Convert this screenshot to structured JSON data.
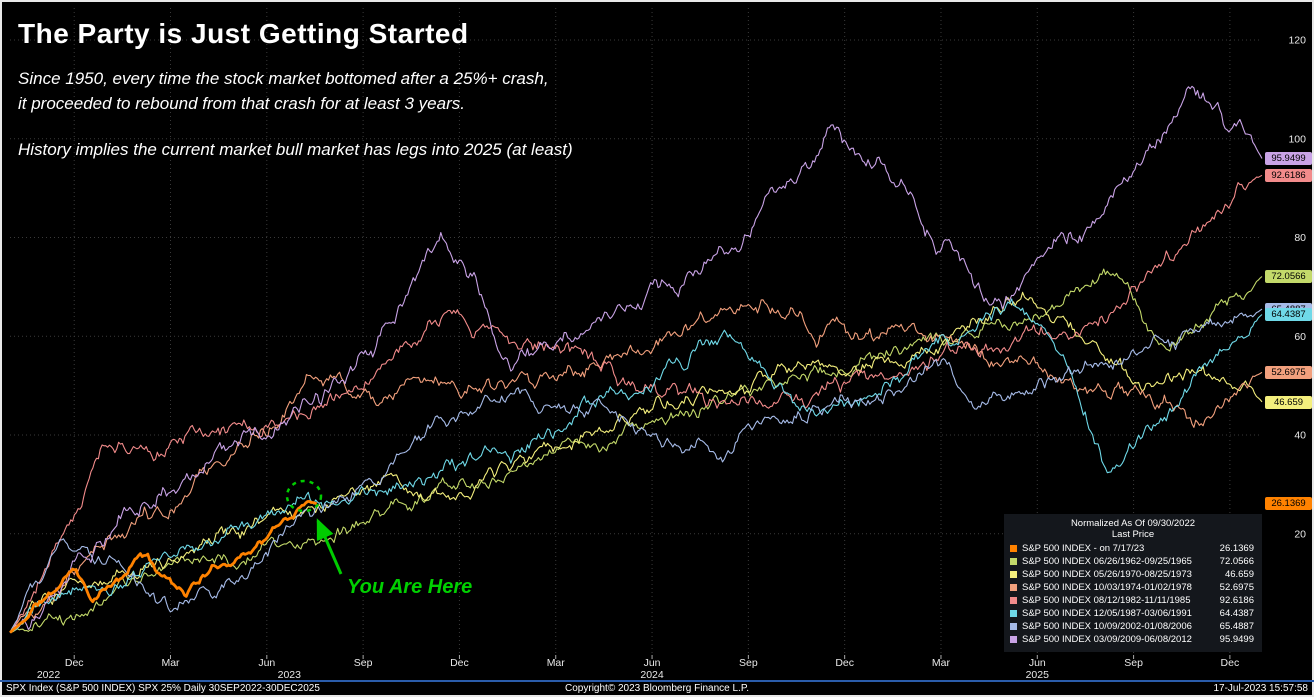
{
  "header": {
    "title": "The Party is Just Getting Started",
    "subtitle_lines": [
      "Since 1950, every time the stock market bottomed after a 25%+ crash,",
      "it proceeded to rebound from that crash for at least 3 years."
    ],
    "note": "History implies the current market bull market has legs into 2025 (at least)"
  },
  "annotation": {
    "label": "You Are Here",
    "color": "#00cc00"
  },
  "legend": {
    "header1": "Normalized As Of 09/30/2022",
    "header2": "Last Price",
    "rows": [
      {
        "label": "S&P 500 INDEX -  on 7/17/23",
        "value": "26.1369",
        "color": "#ff8200"
      },
      {
        "label": "S&P 500 INDEX 06/26/1962-09/25/1965",
        "value": "72.0566",
        "color": "#c3d96a"
      },
      {
        "label": "S&P 500 INDEX 05/26/1970-08/25/1973",
        "value": "46.659",
        "color": "#f4ef7d"
      },
      {
        "label": "S&P 500 INDEX 10/03/1974-01/02/1978",
        "value": "52.6975",
        "color": "#f2a07d"
      },
      {
        "label": "S&P 500 INDEX 08/12/1982-11/11/1985",
        "value": "92.6186",
        "color": "#f28b8b"
      },
      {
        "label": "S&P 500 INDEX 12/05/1987-03/06/1991",
        "value": "64.4387",
        "color": "#6fd9e8"
      },
      {
        "label": "S&P 500 INDEX 10/09/2002-01/08/2006",
        "value": "65.4887",
        "color": "#a6bbe8"
      },
      {
        "label": "S&P 500 INDEX 03/09/2009-06/08/2012",
        "value": "95.9499",
        "color": "#c9a3e6"
      }
    ]
  },
  "footer": {
    "left": "SPX Index (S&P 500 INDEX) SPX 25%  Daily 30SEP2022-30DEC2025",
    "center": "Copyright© 2023 Bloomberg Finance L.P.",
    "right": "17-Jul-2023 15:57:58"
  },
  "chart_data": {
    "type": "line",
    "title": "The Party is Just Getting Started",
    "normalized_as_of": "09/30/2022",
    "x_axis": {
      "start": "Oct 2022",
      "end": "Dec 2025",
      "total_months": 39,
      "month_ticks": [
        {
          "m": 2,
          "label": "Dec"
        },
        {
          "m": 5,
          "label": "Mar"
        },
        {
          "m": 8,
          "label": "Jun"
        },
        {
          "m": 11,
          "label": "Sep"
        },
        {
          "m": 14,
          "label": "Dec"
        },
        {
          "m": 17,
          "label": "Mar"
        },
        {
          "m": 20,
          "label": "Jun"
        },
        {
          "m": 23,
          "label": "Sep"
        },
        {
          "m": 26,
          "label": "Dec"
        },
        {
          "m": 29,
          "label": "Mar"
        },
        {
          "m": 32,
          "label": "Jun"
        },
        {
          "m": 35,
          "label": "Sep"
        },
        {
          "m": 38,
          "label": "Dec"
        }
      ],
      "year_labels": [
        {
          "m": 1.2,
          "label": "2022"
        },
        {
          "m": 8.7,
          "label": "2023"
        },
        {
          "m": 20,
          "label": "2024"
        },
        {
          "m": 32,
          "label": "2025"
        }
      ]
    },
    "y_axis": {
      "side": "right",
      "ticks": [
        120,
        100,
        80,
        60,
        40,
        20
      ],
      "range": [
        -5,
        126
      ]
    },
    "grid": {
      "horizontal": true,
      "vertical": true,
      "style": "dotted"
    },
    "badges": [
      {
        "value": "95.9499",
        "color": "#c9a3e6"
      },
      {
        "value": "92.6186",
        "color": "#f28b8b"
      },
      {
        "value": "72.0566",
        "color": "#c3d96a"
      },
      {
        "value": "65.4887",
        "color": "#a6bbe8"
      },
      {
        "value": "64.4387",
        "color": "#6fd9e8"
      },
      {
        "value": "52.6975",
        "color": "#f2a07d"
      },
      {
        "value": "46.659",
        "color": "#f4ef7d"
      },
      {
        "value": "26.1369",
        "color": "#ff8200"
      }
    ],
    "series": [
      {
        "id": "1962",
        "name": "S&P 500 INDEX 06/26/1962-09/25/1965",
        "color": "#c3d96a",
        "last_price": 72.0566,
        "width": 1.1,
        "seed": 21,
        "amp": 1.0,
        "kx": [
          0,
          0.06,
          0.12,
          0.2,
          0.3,
          0.4,
          0.5,
          0.6,
          0.7,
          0.8,
          0.885,
          0.925,
          0.96,
          1
        ],
        "ky": [
          0,
          6,
          11,
          17,
          25,
          33,
          41,
          48,
          55,
          63,
          72,
          56,
          63,
          72.1
        ]
      },
      {
        "id": "1970",
        "name": "S&P 500 INDEX 05/26/1970-08/25/1973",
        "color": "#f4ef7d",
        "last_price": 46.659,
        "width": 1.1,
        "seed": 31,
        "amp": 1.0,
        "kx": [
          0,
          0.05,
          0.1,
          0.15,
          0.2,
          0.25,
          0.3,
          0.35,
          0.4,
          0.45,
          0.5,
          0.55,
          0.6,
          0.65,
          0.7,
          0.75,
          0.81,
          0.85,
          0.88,
          0.91,
          0.95,
          1
        ],
        "ky": [
          0,
          8,
          14,
          19,
          24,
          27,
          31,
          28,
          33,
          38,
          43,
          46,
          50,
          53,
          56,
          60,
          68,
          60,
          54,
          48,
          53,
          46.7
        ]
      },
      {
        "id": "1974",
        "name": "S&P 500 INDEX 10/03/1974-01/02/1978",
        "color": "#f2a07d",
        "last_price": 52.6975,
        "width": 1.1,
        "seed": 41,
        "amp": 1.1,
        "kx": [
          0,
          0.06,
          0.12,
          0.18,
          0.24,
          0.3,
          0.35,
          0.4,
          0.45,
          0.5,
          0.55,
          0.6,
          0.65,
          0.7,
          0.75,
          0.8,
          0.85,
          0.9,
          0.944,
          1
        ],
        "ky": [
          0,
          14,
          24,
          37,
          53,
          45,
          50,
          48,
          54,
          57,
          61,
          66,
          63,
          60,
          57,
          54,
          51,
          47,
          45,
          52.7
        ]
      },
      {
        "id": "1982",
        "name": "S&P 500 INDEX 08/12/1982-11/11/1985",
        "color": "#f28b8b",
        "last_price": 92.6186,
        "width": 1.1,
        "seed": 51,
        "amp": 1.1,
        "kx": [
          0,
          0.02,
          0.045,
          0.074,
          0.12,
          0.16,
          0.2,
          0.25,
          0.3,
          0.357,
          0.4,
          0.45,
          0.5,
          0.55,
          0.6,
          0.65,
          0.7,
          0.75,
          0.8,
          0.85,
          0.9,
          0.95,
          1
        ],
        "ky": [
          0,
          9,
          22,
          40,
          36,
          42,
          45,
          47,
          54,
          66,
          61,
          57,
          52,
          48,
          44,
          50,
          52,
          55,
          58,
          62,
          70,
          80,
          92.6
        ]
      },
      {
        "id": "1987",
        "name": "S&P 500 INDEX 12/05/1987-03/06/1991",
        "color": "#6fd9e8",
        "last_price": 64.4387,
        "width": 1.1,
        "seed": 61,
        "amp": 1.0,
        "kx": [
          0,
          0.05,
          0.1,
          0.15,
          0.2,
          0.25,
          0.3,
          0.35,
          0.4,
          0.45,
          0.5,
          0.57,
          0.61,
          0.64,
          0.7,
          0.75,
          0.8,
          0.83,
          0.877,
          0.9,
          0.93,
          0.96,
          1
        ],
        "ky": [
          0,
          7,
          13,
          17,
          21,
          25,
          29,
          33,
          37,
          43,
          50,
          61,
          48,
          44,
          52,
          58,
          65,
          58,
          32,
          40,
          48,
          56,
          64.4
        ]
      },
      {
        "id": "2002",
        "name": "S&P 500 INDEX 10/09/2002-01/08/2006",
        "color": "#a6bbe8",
        "last_price": 65.4887,
        "width": 1.1,
        "seed": 71,
        "amp": 1.0,
        "kx": [
          0,
          0.042,
          0.08,
          0.13,
          0.18,
          0.25,
          0.3,
          0.35,
          0.4,
          0.45,
          0.5,
          0.565,
          0.62,
          0.68,
          0.74,
          0.77,
          0.82,
          0.87,
          0.92,
          0.96,
          1
        ],
        "ky": [
          0,
          20,
          14,
          3,
          10,
          25,
          33,
          42,
          49,
          45,
          42,
          37,
          44,
          50,
          57,
          46,
          52,
          55,
          58,
          61,
          65.5
        ]
      },
      {
        "id": "2009",
        "name": "S&P 500 INDEX 03/09/2009-06/08/2012",
        "color": "#c9a3e6",
        "last_price": 95.9499,
        "width": 1.1,
        "seed": 81,
        "amp": 1.2,
        "kx": [
          0,
          0.05,
          0.1,
          0.15,
          0.2,
          0.25,
          0.3,
          0.345,
          0.37,
          0.4,
          0.45,
          0.5,
          0.55,
          0.6,
          0.655,
          0.7,
          0.75,
          0.785,
          0.82,
          0.86,
          0.9,
          0.94,
          0.97,
          1
        ],
        "ky": [
          0,
          14,
          27,
          34,
          41,
          49,
          61,
          79,
          70,
          52,
          60,
          67,
          74,
          87,
          101,
          94,
          80,
          62,
          75,
          82,
          94,
          110,
          103,
          96
        ]
      },
      {
        "id": "current",
        "name": "S&P 500 INDEX -  on 7/17/23",
        "color": "#ff8200",
        "last_price": 26.1369,
        "width": 2.8,
        "seed": 11,
        "amp": 0.55,
        "kx": [
          0,
          0.01,
          0.02,
          0.035,
          0.052,
          0.064,
          0.075,
          0.09,
          0.105,
          0.118,
          0.14,
          0.155,
          0.17,
          0.185,
          0.2,
          0.215,
          0.228,
          0.238,
          0.245
        ],
        "ky": [
          0,
          2,
          5.5,
          8,
          13.5,
          7.5,
          9,
          11,
          16,
          12.5,
          8.5,
          12,
          14,
          16.5,
          19,
          22,
          24.5,
          27,
          26.1
        ]
      }
    ]
  }
}
